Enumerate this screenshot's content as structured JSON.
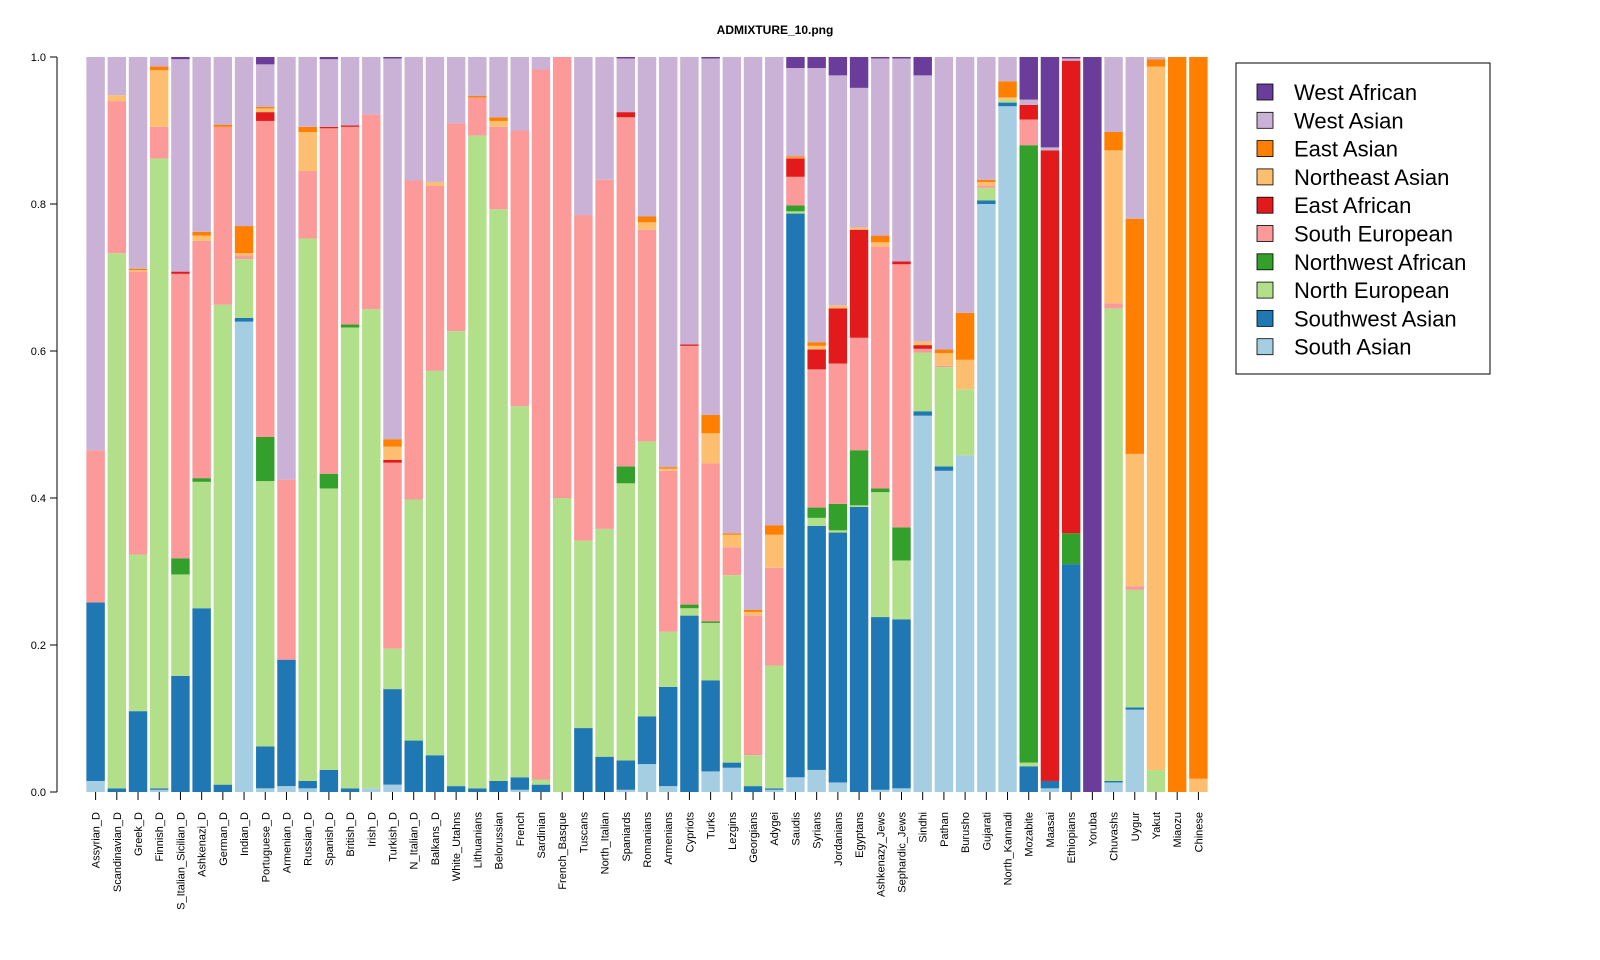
{
  "chart_data": {
    "type": "stacked_bar",
    "title": "ADMIXTURE_10.png",
    "categories": [
      "Assyrian_D",
      "Scandinavian_D",
      "Greek_D",
      "Finnish_D",
      "S_Italian_Sicilian_D",
      "Ashkenazi_D",
      "German_D",
      "Indian_D",
      "Portuguese_D",
      "Armenian_D",
      "Russian_D",
      "Spanish_D",
      "British_D",
      "Irish_D",
      "Turkish_D",
      "N_Italian_D",
      "Balkans_D",
      "White_Utahns",
      "Lithuanians",
      "Belorussian",
      "French",
      "Sardinian",
      "French_Basque",
      "Tuscans",
      "North_Italian",
      "Spaniards",
      "Romanians",
      "Armenians",
      "Cypriots",
      "Turks",
      "Lezgins",
      "Georgians",
      "Adygei",
      "Saudis",
      "Syrians",
      "Jordanians",
      "Egyptans",
      "Ashkenazy_Jews",
      "Sephardic_Jews",
      "Sindhi",
      "Pathan",
      "Burusho",
      "Gujarati",
      "North_Kannadi",
      "Mozabite",
      "Maasai",
      "Ethiopians",
      "Yoruba",
      "Chuvashs",
      "Uygur",
      "Yakut",
      "Miaozu",
      "Chinese"
    ],
    "series": [
      {
        "name": "South Asian",
        "color": "#a6cee3",
        "values": [
          0.015,
          0,
          0,
          0.003,
          0,
          0,
          0,
          0.64,
          0.005,
          0.008,
          0.005,
          0,
          0,
          0.005,
          0.01,
          0,
          0,
          0,
          0,
          0,
          0.003,
          0,
          0,
          0,
          0,
          0.003,
          0.038,
          0.008,
          0,
          0.028,
          0.033,
          0,
          0.003,
          0.02,
          0.03,
          0.013,
          0,
          0.003,
          0.005,
          0.512,
          0.437,
          0.458,
          0.8,
          0.933,
          0,
          0.005,
          0,
          0,
          0.013,
          0.112,
          0,
          0,
          0
        ]
      },
      {
        "name": "Southwest Asian",
        "color": "#1f78b4",
        "values": [
          0.243,
          0.005,
          0.11,
          0.002,
          0.158,
          0.25,
          0.01,
          0.005,
          0.057,
          0.172,
          0.01,
          0.03,
          0.005,
          0,
          0.13,
          0.07,
          0.05,
          0.008,
          0.005,
          0.015,
          0.017,
          0.01,
          0,
          0.087,
          0.048,
          0.04,
          0.065,
          0.135,
          0.24,
          0.124,
          0.007,
          0.008,
          0.002,
          0.767,
          0.332,
          0.34,
          0.388,
          0.235,
          0.23,
          0.006,
          0.006,
          0,
          0.005,
          0.005,
          0.035,
          0.01,
          0.31,
          0,
          0.002,
          0.003,
          0,
          0,
          0
        ]
      },
      {
        "name": "North European",
        "color": "#b2df8a",
        "values": [
          0,
          0.728,
          0.213,
          0.857,
          0.138,
          0.172,
          0.653,
          0.08,
          0.361,
          0,
          0.738,
          0.383,
          0.627,
          0.652,
          0.055,
          0.328,
          0.523,
          0.619,
          0.888,
          0.778,
          0.505,
          0.007,
          0.4,
          0.255,
          0.31,
          0.377,
          0.374,
          0.075,
          0.01,
          0.078,
          0.255,
          0.042,
          0.167,
          0.003,
          0.011,
          0.003,
          0.002,
          0.17,
          0.08,
          0.08,
          0.135,
          0.09,
          0.017,
          0.004,
          0.005,
          0,
          0,
          0,
          0.643,
          0.16,
          0.03,
          0,
          0
        ]
      },
      {
        "name": "Northwest African",
        "color": "#33a02c",
        "values": [
          0,
          0,
          0,
          0,
          0.022,
          0.005,
          0,
          0,
          0.06,
          0,
          0,
          0.02,
          0.004,
          0,
          0,
          0,
          0,
          0,
          0,
          0,
          0,
          0,
          0,
          0,
          0,
          0.023,
          0,
          0,
          0.005,
          0.002,
          0,
          0,
          0,
          0.008,
          0.014,
          0.036,
          0.075,
          0.005,
          0.045,
          0,
          0,
          0,
          0,
          0,
          0.84,
          0,
          0.042,
          0,
          0,
          0,
          0,
          0,
          0
        ]
      },
      {
        "name": "South European",
        "color": "#fb9a99",
        "values": [
          0.207,
          0.207,
          0.385,
          0.043,
          0.387,
          0.323,
          0.242,
          0.005,
          0.43,
          0.245,
          0.092,
          0.47,
          0.269,
          0.265,
          0.253,
          0.434,
          0.252,
          0.283,
          0.052,
          0.112,
          0.375,
          0.966,
          0.6,
          0.443,
          0.475,
          0.475,
          0.288,
          0.219,
          0.352,
          0.215,
          0.038,
          0.19,
          0.133,
          0.039,
          0.188,
          0.191,
          0.153,
          0.329,
          0.358,
          0.005,
          0.002,
          0,
          0.003,
          0,
          0.035,
          0,
          0,
          0,
          0.007,
          0.005,
          0,
          0,
          0
        ]
      },
      {
        "name": "East African",
        "color": "#e31a1c",
        "values": [
          0,
          0,
          0,
          0,
          0.003,
          0,
          0,
          0,
          0.012,
          0,
          0,
          0.002,
          0.002,
          0,
          0.004,
          0,
          0,
          0,
          0,
          0,
          0,
          0,
          0,
          0,
          0,
          0.007,
          0,
          0,
          0.002,
          0,
          0,
          0,
          0,
          0.025,
          0.027,
          0.075,
          0.147,
          0,
          0.004,
          0.005,
          0,
          0,
          0,
          0,
          0.02,
          0.858,
          0.643,
          0,
          0,
          0,
          0,
          0,
          0
        ]
      },
      {
        "name": "Northeast Asian",
        "color": "#fdbf6f",
        "values": [
          0,
          0.008,
          0.002,
          0.077,
          0,
          0.007,
          0,
          0.003,
          0.005,
          0,
          0.053,
          0,
          0,
          0,
          0.018,
          0,
          0.005,
          0,
          0,
          0.008,
          0,
          0,
          0,
          0,
          0,
          0,
          0.01,
          0.003,
          0,
          0.041,
          0.017,
          0.005,
          0.045,
          0.001,
          0.005,
          0.004,
          0.003,
          0.006,
          0,
          0.005,
          0.017,
          0.04,
          0.005,
          0.003,
          0,
          0,
          0,
          0,
          0.208,
          0.18,
          0.957,
          0,
          0.018
        ]
      },
      {
        "name": "East Asian",
        "color": "#ff7f00",
        "values": [
          0,
          0,
          0.002,
          0.005,
          0,
          0.005,
          0.003,
          0.037,
          0.002,
          0,
          0.007,
          0,
          0,
          0,
          0.01,
          0,
          0,
          0,
          0.002,
          0.005,
          0,
          0,
          0,
          0,
          0,
          0,
          0.008,
          0.002,
          0,
          0.025,
          0.002,
          0.003,
          0.013,
          0.002,
          0.005,
          0,
          0,
          0.009,
          0,
          0,
          0.005,
          0.064,
          0.003,
          0.022,
          0,
          0,
          0,
          0,
          0.025,
          0.32,
          0.01,
          1,
          0.982
        ]
      },
      {
        "name": "West Asian",
        "color": "#cab2d6",
        "values": [
          0.535,
          0.052,
          0.288,
          0.013,
          0.289,
          0.238,
          0.092,
          0.23,
          0.058,
          0.575,
          0.095,
          0.092,
          0.093,
          0.078,
          0.518,
          0.168,
          0.17,
          0.09,
          0.053,
          0.082,
          0.1,
          0.017,
          0,
          0.215,
          0.167,
          0.073,
          0.217,
          0.558,
          0.391,
          0.485,
          0.648,
          0.752,
          0.637,
          0.12,
          0.373,
          0.313,
          0.19,
          0.241,
          0.276,
          0.362,
          0.398,
          0.348,
          0.167,
          0.033,
          0.007,
          0.004,
          0.003,
          0,
          0.102,
          0.22,
          0.003,
          0,
          0
        ]
      },
      {
        "name": "West African",
        "color": "#6a3d9a",
        "values": [
          0,
          0,
          0,
          0,
          0.003,
          0,
          0,
          0,
          0.01,
          0,
          0,
          0.003,
          0,
          0,
          0.002,
          0,
          0,
          0,
          0,
          0,
          0,
          0,
          0,
          0,
          0,
          0.002,
          0,
          0,
          0,
          0.002,
          0,
          0,
          0,
          0.015,
          0.015,
          0.025,
          0.042,
          0.002,
          0.002,
          0.025,
          0,
          0,
          0,
          0,
          0.058,
          0.123,
          0.002,
          1,
          0,
          0,
          0,
          0,
          0
        ]
      }
    ],
    "ylim": [
      0,
      1
    ],
    "yticks": [
      {
        "value": 0,
        "label": "0.0"
      },
      0.2,
      0.4,
      0.6,
      0.8,
      {
        "value": 1,
        "label": "1.0"
      }
    ],
    "legend_position": "right"
  }
}
